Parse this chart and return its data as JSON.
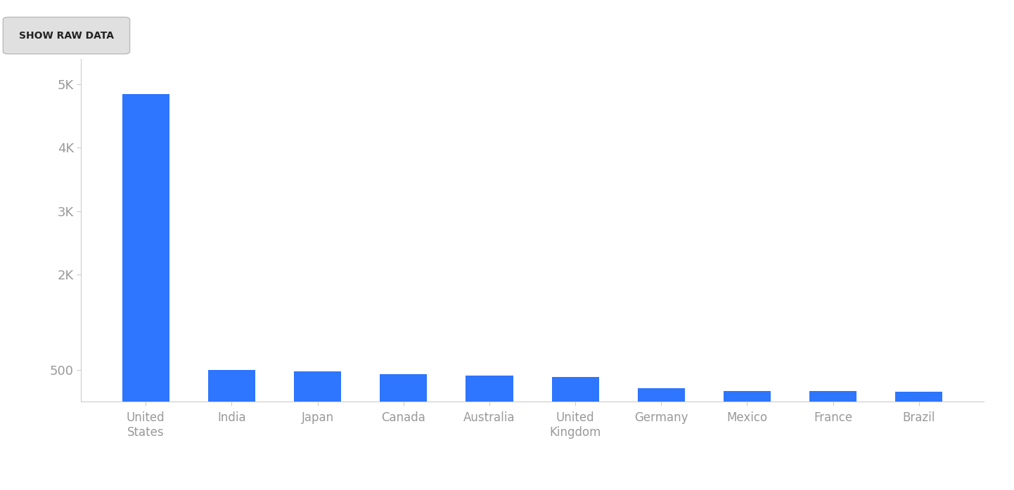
{
  "categories": [
    "United\nStates",
    "India",
    "Japan",
    "Canada",
    "Australia",
    "United\nKingdom",
    "Germany",
    "Mexico",
    "France",
    "Brazil"
  ],
  "values": [
    4850,
    497,
    478,
    435,
    415,
    395,
    215,
    175,
    165,
    160
  ],
  "bar_color": "#2E75FF",
  "background_color": "#ffffff",
  "ytick_labels": [
    "500",
    "2K",
    "3K",
    "4K",
    "5K"
  ],
  "ytick_values": [
    500,
    2000,
    3000,
    4000,
    5000
  ],
  "button_text": "SHOW RAW DATA",
  "button_bg": "#e0e0e0",
  "axis_color": "#cccccc",
  "label_color": "#999999",
  "ylim": [
    0,
    5400
  ],
  "bar_width": 0.55,
  "xlabel_fontsize": 12,
  "tick_fontsize": 13
}
